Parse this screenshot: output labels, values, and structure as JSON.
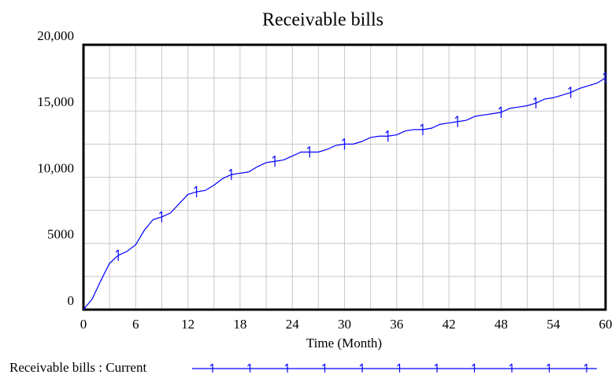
{
  "chart_data": {
    "type": "line",
    "title": "Receivable bills",
    "x_label": "Time (Month)",
    "x": [
      0,
      1,
      2,
      3,
      4,
      5,
      6,
      7,
      8,
      9,
      10,
      11,
      12,
      13,
      14,
      15,
      16,
      17,
      18,
      19,
      20,
      21,
      22,
      23,
      24,
      25,
      26,
      27,
      28,
      29,
      30,
      31,
      32,
      33,
      34,
      35,
      36,
      37,
      38,
      39,
      40,
      41,
      42,
      43,
      44,
      45,
      46,
      47,
      48,
      49,
      50,
      51,
      52,
      53,
      54,
      55,
      56,
      57,
      58,
      59,
      60
    ],
    "series": [
      {
        "name": "Receivable bills : Current",
        "color": "#0000ff",
        "values": [
          0,
          800,
          2200,
          3500,
          4100,
          4400,
          4900,
          6000,
          6800,
          7000,
          7300,
          8000,
          8700,
          8900,
          9000,
          9400,
          9900,
          10200,
          10300,
          10400,
          10800,
          11100,
          11200,
          11300,
          11600,
          11900,
          11900,
          11900,
          12100,
          12400,
          12500,
          12500,
          12700,
          13000,
          13100,
          13100,
          13200,
          13500,
          13600,
          13600,
          13700,
          14000,
          14100,
          14200,
          14300,
          14600,
          14700,
          14800,
          14900,
          15200,
          15300,
          15400,
          15600,
          15900,
          16000,
          16200,
          16400,
          16700,
          16900,
          17100,
          17500
        ]
      }
    ],
    "xlim": [
      0,
      60
    ],
    "xticks": [
      0,
      6,
      12,
      18,
      24,
      30,
      36,
      42,
      48,
      54,
      60
    ],
    "x_grid": [
      3,
      9,
      15,
      21,
      27,
      33,
      39,
      45,
      51,
      57
    ],
    "ylim": [
      0,
      20000
    ],
    "yticks": [
      0,
      5000,
      {
        "value": 10000,
        "label": "10,000"
      },
      {
        "value": 15000,
        "label": "15,000"
      },
      {
        "value": 20000,
        "label": "20,000"
      }
    ],
    "y_grid": [
      2500,
      7500,
      12500,
      17500
    ],
    "grid": true
  }
}
